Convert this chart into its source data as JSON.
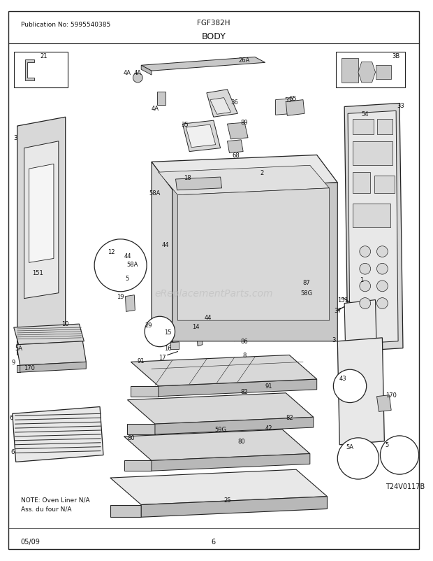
{
  "title": "BODY",
  "model": "FGF382H",
  "publication": "Publication No: 5995540385",
  "footer_left": "05/09",
  "footer_center": "6",
  "footer_right": "T24V0117B",
  "note_line1": "NOTE: Oven Liner N/A",
  "note_line2": "Ass. du four N/A",
  "bg_color": "#ffffff",
  "border_color": "#222222",
  "text_color": "#111111",
  "watermark": "eReplacementParts.com",
  "watermark_color": "#bbbbbb"
}
